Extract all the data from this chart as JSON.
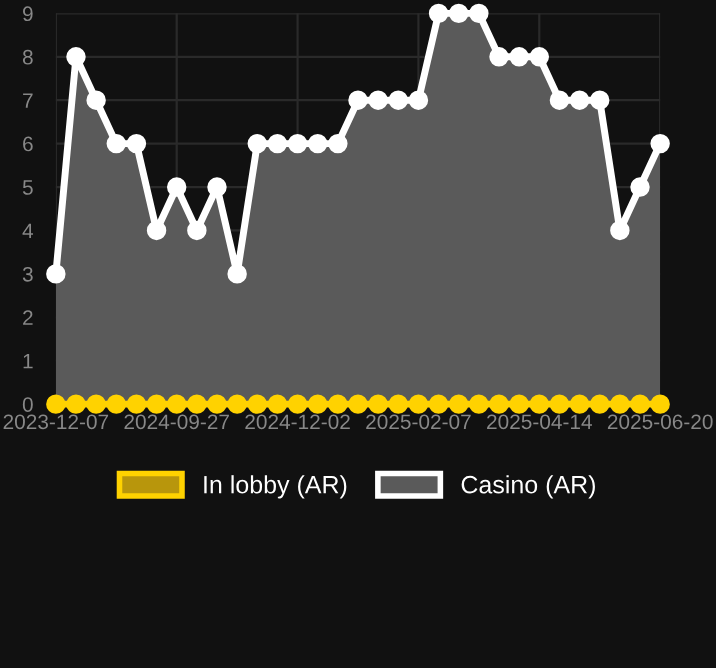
{
  "chart_data": {
    "type": "area",
    "categories": [
      "2023-12-07",
      null,
      null,
      null,
      null,
      null,
      "2024-09-27",
      null,
      null,
      null,
      null,
      null,
      "2024-12-02",
      null,
      null,
      null,
      null,
      null,
      "2025-02-07",
      null,
      null,
      null,
      null,
      null,
      "2025-04-14",
      null,
      null,
      null,
      null,
      null,
      "2025-06-20"
    ],
    "series": [
      {
        "name": "In lobby (AR)",
        "type": "line",
        "color": "#ffd200",
        "values": [
          0,
          0,
          0,
          0,
          0,
          0,
          0,
          0,
          0,
          0,
          0,
          0,
          0,
          0,
          0,
          0,
          0,
          0,
          0,
          0,
          0,
          0,
          0,
          0,
          0,
          0,
          0,
          0,
          0,
          0,
          0
        ]
      },
      {
        "name": "Casino (AR)",
        "color": "#ffffff",
        "values": [
          3,
          8,
          7,
          6,
          6,
          4,
          5,
          4,
          5,
          3,
          6,
          6,
          6,
          6,
          6,
          7,
          7,
          7,
          7,
          9,
          9,
          9,
          8,
          8,
          8,
          7,
          7,
          7,
          4,
          5,
          6
        ]
      }
    ],
    "ylim": [
      0,
      9
    ],
    "yticks": [
      0,
      1,
      2,
      3,
      4,
      5,
      6,
      7,
      8,
      9
    ],
    "grid": true,
    "legend": "bottom",
    "marker": "circle",
    "line_style": "solid"
  }
}
